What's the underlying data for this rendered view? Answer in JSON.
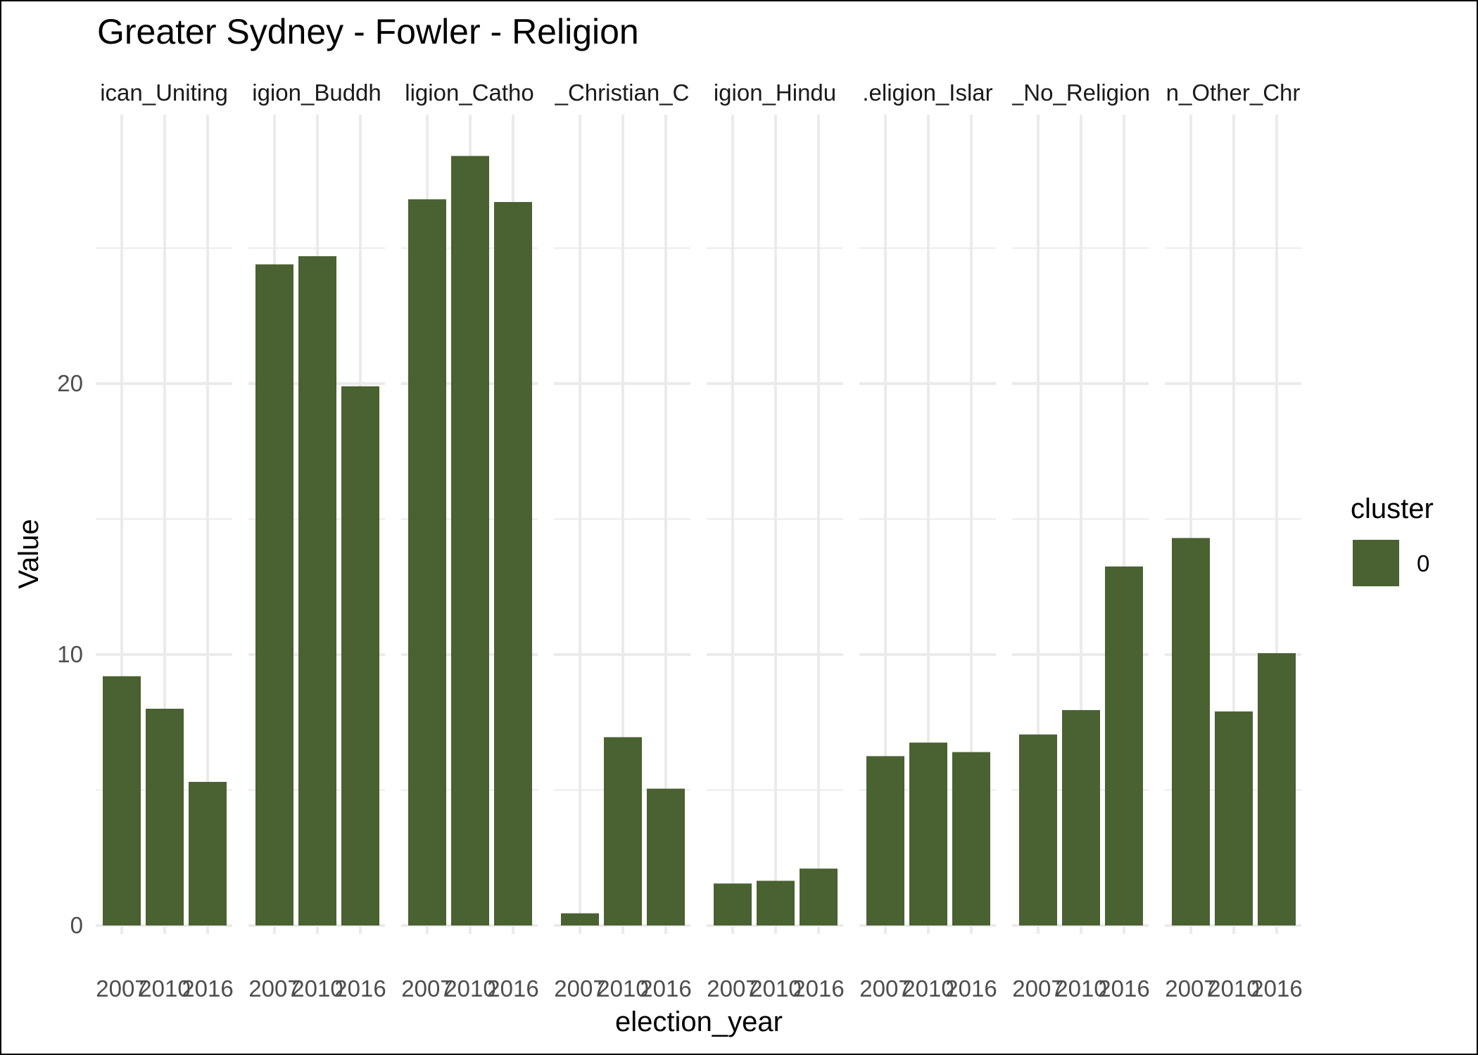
{
  "chart_data": {
    "type": "bar",
    "title": "Greater Sydney - Fowler - Religion",
    "xlabel": "election_year",
    "ylabel": "Value",
    "ylim": [
      0,
      28.5
    ],
    "y_ticks": [
      "0",
      "10",
      "20"
    ],
    "grid": true,
    "facet_strip_labels": [
      "ican_Uniting",
      "igion_Buddh",
      "ligion_Catho",
      "_Christian_C",
      "igion_Hindu",
      ".eligion_Islar",
      "_No_Religion",
      "n_Other_Chr"
    ],
    "categories": [
      "2007",
      "2010",
      "2016"
    ],
    "series": [
      {
        "facet": "ican_Uniting",
        "values": [
          9.2,
          8.0,
          5.3
        ]
      },
      {
        "facet": "igion_Buddh",
        "values": [
          24.4,
          24.7,
          19.9
        ]
      },
      {
        "facet": "ligion_Catho",
        "values": [
          26.8,
          28.4,
          26.7
        ]
      },
      {
        "facet": "_Christian_C",
        "values": [
          0.45,
          6.95,
          5.05
        ]
      },
      {
        "facet": "igion_Hindu",
        "values": [
          1.55,
          1.65,
          2.1
        ]
      },
      {
        "facet": ".eligion_Islar",
        "values": [
          6.25,
          6.75,
          6.4
        ]
      },
      {
        "facet": "_No_Religion",
        "values": [
          7.05,
          7.95,
          13.25
        ]
      },
      {
        "facet": "n_Other_Chr",
        "values": [
          14.3,
          7.9,
          10.05
        ]
      }
    ],
    "legend": {
      "title": "cluster",
      "entries": [
        "0"
      ],
      "placement": "right"
    },
    "bar_color": "#4a6131",
    "grid_color": "#ebebeb"
  }
}
